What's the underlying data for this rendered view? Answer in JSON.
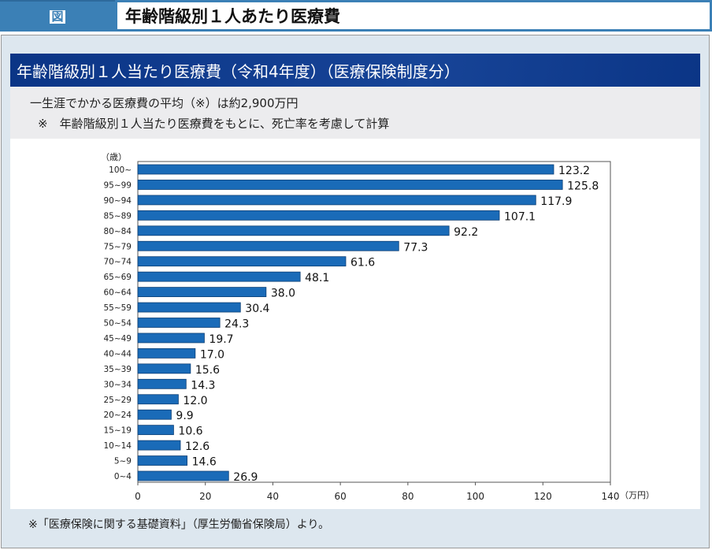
{
  "header": {
    "label": "図",
    "title": "年齢階級別１人あたり医療費"
  },
  "banner": "年齢階級別１人当たり医療費（令和4年度）（医療保険制度分）",
  "notes": [
    "一生涯でかかる医療費の平均（※）は約2,900万円",
    "※　年齢階級別１人当たり医療費をもとに、死亡率を考慮して計算"
  ],
  "footer": "※「医療保険に関する基礎資料」（厚生労働省保険局）より。",
  "chart_data": {
    "type": "bar",
    "orientation": "horizontal",
    "ylabel": "（歳）",
    "xlabel": "（万円）",
    "xlim": [
      0,
      140
    ],
    "xticks": [
      0,
      20,
      40,
      60,
      80,
      100,
      120,
      140
    ],
    "categories": [
      "100~",
      "95~99",
      "90~94",
      "85~89",
      "80~84",
      "75~79",
      "70~74",
      "65~69",
      "60~64",
      "55~59",
      "50~54",
      "45~49",
      "40~44",
      "35~39",
      "30~34",
      "25~29",
      "20~24",
      "15~19",
      "10~14",
      "5~9",
      "0~4"
    ],
    "values": [
      123.2,
      125.8,
      117.9,
      107.1,
      92.2,
      77.3,
      61.6,
      48.1,
      38.0,
      30.4,
      24.3,
      19.7,
      17.0,
      15.6,
      14.3,
      12.0,
      9.9,
      10.6,
      12.6,
      14.6,
      26.9
    ],
    "labels": [
      "123.2",
      "125.8",
      "117.9",
      "107.1",
      "92.2",
      "77.3",
      "61.6",
      "48.1",
      "38.0",
      "30.4",
      "24.3",
      "19.7",
      "17.0",
      "15.6",
      "14.3",
      "12.0",
      "9.9",
      "10.6",
      "12.6",
      "14.6",
      "26.9"
    ],
    "bar_color": "#1a6bb8"
  }
}
